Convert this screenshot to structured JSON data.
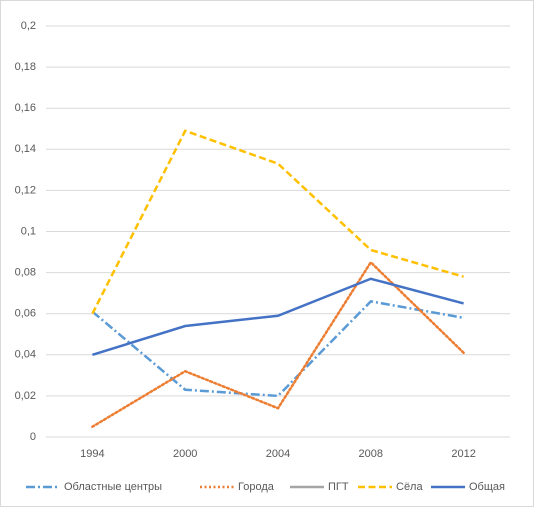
{
  "chart_data": {
    "type": "line",
    "categories": [
      "1994",
      "2000",
      "2004",
      "2008",
      "2012"
    ],
    "series": [
      {
        "name": "Областные центры",
        "color": "#5b9bd5",
        "style": "dash-dot",
        "values": [
          0.061,
          0.023,
          0.02,
          0.066,
          0.058
        ]
      },
      {
        "name": "Города",
        "color": "#ed7d31",
        "style": "dotted",
        "values": [
          0.005,
          0.032,
          0.014,
          0.085,
          0.041
        ]
      },
      {
        "name": "ПГТ",
        "color": "#a5a5a5",
        "style": "solid",
        "values": [
          null,
          null,
          null,
          null,
          null
        ]
      },
      {
        "name": "Сёла",
        "color": "#ffc000",
        "style": "dashed",
        "values": [
          0.06,
          0.149,
          0.133,
          0.091,
          0.078
        ]
      },
      {
        "name": "Общая",
        "color": "#4472c4",
        "style": "solid",
        "values": [
          0.04,
          0.054,
          0.059,
          0.077,
          0.065
        ]
      }
    ],
    "ylim": [
      0,
      0.2
    ],
    "yticks": [
      {
        "value": 0,
        "label": "0"
      },
      {
        "value": 0.02,
        "label": "0,02"
      },
      {
        "value": 0.04,
        "label": "0,04"
      },
      {
        "value": 0.06,
        "label": "0,06"
      },
      {
        "value": 0.08,
        "label": "0,08"
      },
      {
        "value": 0.1,
        "label": "0,1"
      },
      {
        "value": 0.12,
        "label": "0,12"
      },
      {
        "value": 0.14,
        "label": "0,14"
      },
      {
        "value": 0.16,
        "label": "0,16"
      },
      {
        "value": 0.18,
        "label": "0,18"
      },
      {
        "value": 0.2,
        "label": "0,2"
      }
    ],
    "grid": true,
    "legend": "bottom"
  }
}
